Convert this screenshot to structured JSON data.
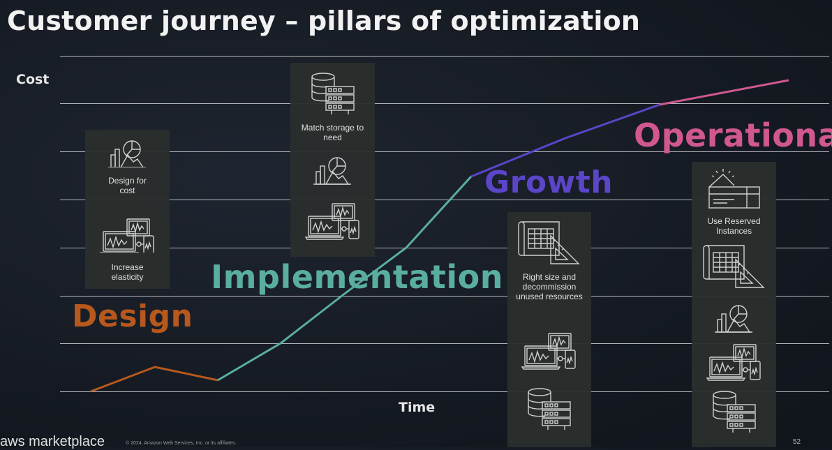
{
  "title": "Customer journey – pillars of optimization",
  "axes": {
    "y_label": "Cost",
    "x_label": "Time"
  },
  "phases": {
    "design": {
      "label": "Design",
      "color": "#b7581d"
    },
    "implementation": {
      "label": "Implementation",
      "color": "#5aaea0"
    },
    "growth": {
      "label": "Growth",
      "color": "#5b45c9"
    },
    "operational": {
      "label": "Operational",
      "color": "#d0588f"
    }
  },
  "panels": {
    "design": {
      "captions": [
        "Design for cost",
        "Increase elasticity"
      ],
      "icons": [
        "analytics-icon",
        "devices-icon"
      ]
    },
    "implementation": {
      "captions": [
        "Match storage to need"
      ],
      "icons": [
        "storage-icon",
        "analytics-icon",
        "devices-icon"
      ]
    },
    "growth": {
      "captions": [
        "Right size and decommission unused resources"
      ],
      "icons": [
        "blueprint-icon",
        "devices-icon",
        "storage-icon"
      ]
    },
    "operational": {
      "captions": [
        "Use Reserved Instances"
      ],
      "icons": [
        "reserved-instance-icon",
        "blueprint-icon",
        "analytics-icon",
        "devices-icon",
        "storage-icon"
      ]
    }
  },
  "footer": {
    "logo": "aws marketplace",
    "copyright": "© 2024, Amazon Web Services, Inc. or its affiliates.",
    "page": "52"
  }
}
